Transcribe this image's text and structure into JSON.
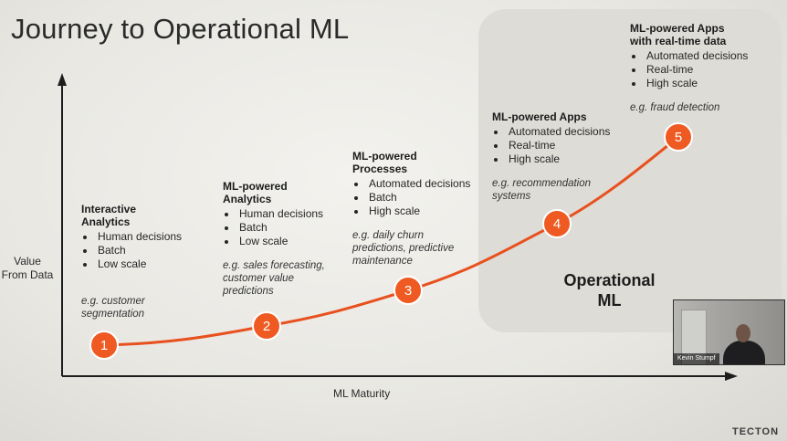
{
  "slide": {
    "title": "Journey to Operational ML",
    "y_axis_label": [
      "Value",
      "From Data"
    ],
    "x_axis_label": "ML Maturity",
    "operational_label": [
      "Operational",
      "ML"
    ],
    "brand": "TECTON",
    "curve_color": "#e8501e",
    "marker_color": "#ef5a22"
  },
  "stages": [
    {
      "number": "1",
      "title": [
        "Interactive",
        "Analytics"
      ],
      "bullets": [
        "Human decisions",
        "Batch",
        "Low scale"
      ],
      "example": [
        "e.g. customer",
        "segmentation"
      ]
    },
    {
      "number": "2",
      "title": [
        "ML-powered",
        "Analytics"
      ],
      "bullets": [
        "Human decisions",
        "Batch",
        "Low scale"
      ],
      "example": [
        "e.g. sales forecasting,",
        "customer value",
        "predictions"
      ]
    },
    {
      "number": "3",
      "title": [
        "ML-powered",
        "Processes"
      ],
      "bullets": [
        "Automated decisions",
        "Batch",
        "High scale"
      ],
      "example": [
        "e.g. daily churn",
        "predictions, predictive",
        "maintenance"
      ]
    },
    {
      "number": "4",
      "title": [
        "ML-powered Apps"
      ],
      "bullets": [
        "Automated decisions",
        "Real-time",
        "High scale"
      ],
      "example": [
        "e.g. recommendation",
        "systems"
      ]
    },
    {
      "number": "5",
      "title": [
        "ML-powered Apps",
        "with real-time data"
      ],
      "bullets": [
        "Automated decisions",
        "Real-time",
        "High scale"
      ],
      "example": [
        "e.g. fraud detection"
      ]
    }
  ],
  "webcam": {
    "name": "Kevin Stumpf"
  }
}
